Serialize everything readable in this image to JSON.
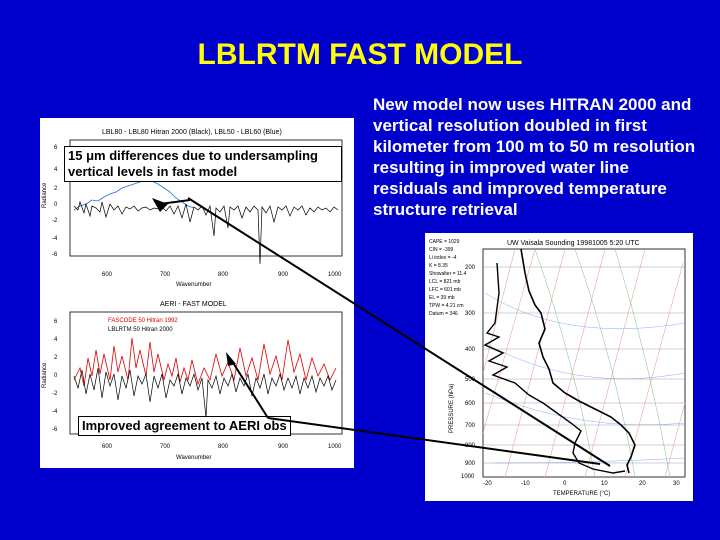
{
  "slide": {
    "title": "LBLRTM FAST MODEL",
    "description": "New model now uses HITRAN 2000 and vertical resolution doubled in first kilometer from 100 m to 50 m resolution resulting in improved water line residuals and improved temperature structure retrieval"
  },
  "plot_top": {
    "title": "LBL80 - LBL80 Hitran 2000 (Black), LBL50 - LBL60 (Blue)",
    "ylabel": "Radiance",
    "xlabel": "Wavenumber",
    "xticks": [
      "600",
      "700",
      "800",
      "900",
      "1000"
    ],
    "yticks": [
      "6",
      "4",
      "2",
      "0",
      "-2",
      "-4",
      "-6"
    ]
  },
  "plot_bottom": {
    "title": "AERI - FAST MODEL",
    "legend": [
      "FASCODE 50 Hitran 1992",
      "LBLRTM 50 Hitran 2000"
    ],
    "ylabel": "Radiance",
    "xlabel": "Wavenumber",
    "xticks": [
      "600",
      "700",
      "800",
      "900",
      "1000"
    ],
    "yticks": [
      "6",
      "4",
      "2",
      "0",
      "-2",
      "-4",
      "-6"
    ]
  },
  "callouts": {
    "upper_line1": "15 μm differences due to undersampling",
    "upper_line2": "vertical levels in fast model",
    "lower": "Improved agreement to AERI obs"
  },
  "sounding": {
    "title": "UW Vaisala Sounding  19981005  5:20 UTC",
    "xlabel": "TEMPERATURE (°C)",
    "ylabel": "PRESSURE (hPa)",
    "pressure_ticks": [
      "200",
      "300",
      "400",
      "500",
      "600",
      "700",
      "800",
      "900",
      "1000"
    ],
    "temp_ticks": [
      "-20",
      "-10",
      "0",
      "10",
      "20",
      "30"
    ],
    "stats": [
      "CAPE = 1029",
      "CIN = -399",
      "Li index = -4",
      "K = 8.35",
      "Showalter = 11.4",
      "LCL = 821 mb",
      "LFC = 601 mb",
      "EL = 39 mb",
      "TPW = 4.21 cm",
      "Datum = 346"
    ]
  },
  "colors": {
    "background": "#0000cc",
    "title": "#ffff00",
    "text": "#ffffff",
    "series_black": "#000000",
    "series_blue": "#1e6fe0",
    "series_red": "#e00000"
  }
}
